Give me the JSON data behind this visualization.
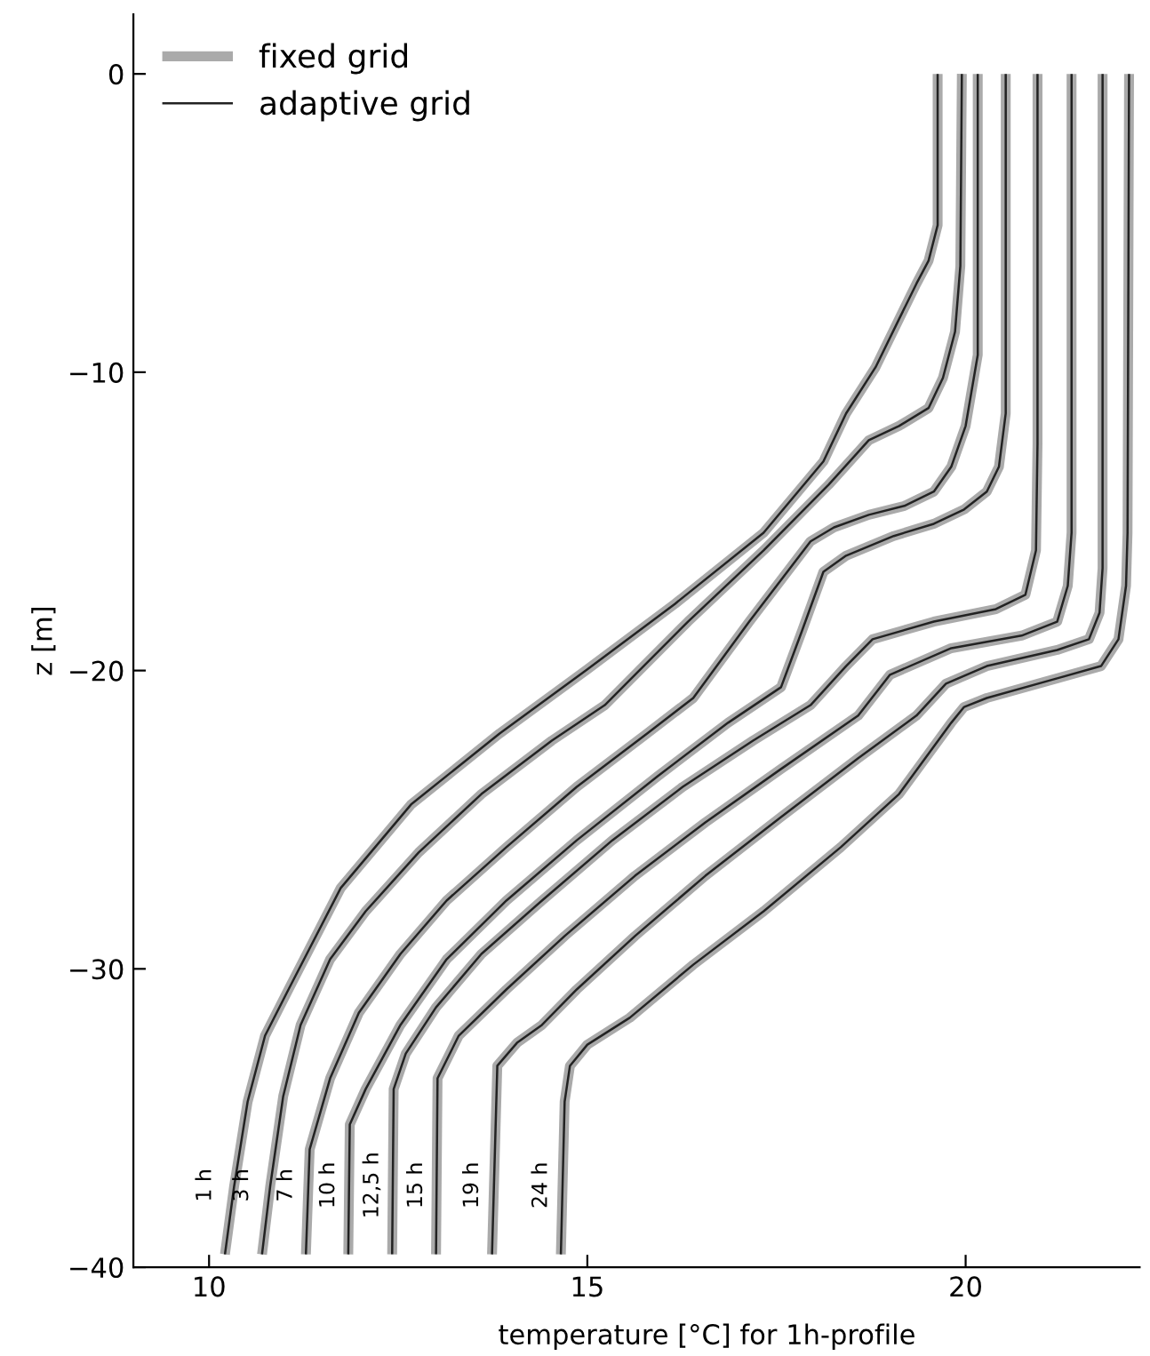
{
  "chart_data": {
    "type": "line",
    "xlabel": "temperature [°C] for 1h-profile",
    "ylabel": "z [m]",
    "xlim": [
      9,
      22.3
    ],
    "xticks": [
      10,
      15,
      20
    ],
    "ylim": [
      -40,
      2
    ],
    "yticks": [
      {
        "value": -40,
        "label": "−40"
      },
      {
        "value": -30,
        "label": "−30"
      },
      {
        "value": -20,
        "label": "−20"
      },
      {
        "value": -10,
        "label": "−10"
      },
      0
    ],
    "grid": false,
    "legend": "top left",
    "series": [
      {
        "name": "fixed grid",
        "color": "#aaaaaa",
        "x": [
          19.63,
          19.63,
          19.51,
          19.35,
          19.12,
          18.81,
          18.42,
          18.12,
          17.33,
          16.16,
          15.0,
          13.84,
          12.67,
          11.74,
          11.05,
          10.74,
          10.51,
          10.33,
          10.21
        ],
        "values": [
          0,
          -5.07,
          -6.26,
          -7.03,
          -8.22,
          -9.83,
          -11.38,
          -12.99,
          -15.38,
          -17.76,
          -19.96,
          -22.11,
          -24.49,
          -27.29,
          -30.69,
          -32.24,
          -34.45,
          -37.31,
          -39.57
        ]
      },
      {
        "color": "#aaaaaa",
        "x": [
          19.95,
          19.93,
          19.86,
          19.7,
          19.51,
          19.12,
          18.72,
          18.19,
          17.33,
          16.33,
          15.23,
          14.53,
          13.6,
          12.77,
          12.07,
          11.6,
          11.21,
          10.98,
          10.81,
          10.7
        ],
        "values": [
          0,
          -6.44,
          -8.64,
          -10.19,
          -11.2,
          -11.8,
          -12.28,
          -13.77,
          -15.97,
          -18.36,
          -21.16,
          -22.35,
          -24.14,
          -26.1,
          -28.07,
          -29.68,
          -31.88,
          -34.27,
          -37.25,
          -39.57
        ]
      },
      {
        "color": "#aaaaaa",
        "x": [
          20.16,
          20.16,
          20.0,
          19.81,
          19.58,
          19.19,
          18.72,
          18.26,
          17.95,
          17.14,
          16.4,
          15.79,
          14.86,
          13.93,
          13.14,
          12.53,
          11.98,
          11.6,
          11.33,
          11.28
        ],
        "values": [
          0,
          -9.42,
          -11.8,
          -13.17,
          -14.0,
          -14.48,
          -14.78,
          -15.2,
          -15.67,
          -18.36,
          -20.92,
          -22.11,
          -23.9,
          -25.92,
          -27.71,
          -29.5,
          -31.47,
          -33.67,
          -36.05,
          -39.57
        ]
      },
      {
        "color": "#aaaaaa",
        "x": [
          20.53,
          20.53,
          20.44,
          20.28,
          19.98,
          19.58,
          19.05,
          18.42,
          18.12,
          17.84,
          17.56,
          16.86,
          15.93,
          14.86,
          13.93,
          13.14,
          12.53,
          12.07,
          11.86,
          11.84
        ],
        "values": [
          0,
          -11.38,
          -13.17,
          -14.0,
          -14.6,
          -15.08,
          -15.49,
          -16.15,
          -16.69,
          -18.65,
          -20.56,
          -21.75,
          -23.54,
          -25.69,
          -27.71,
          -29.68,
          -31.88,
          -34.03,
          -35.22,
          -39.57
        ]
      },
      {
        "color": "#aaaaaa",
        "x": [
          20.95,
          20.95,
          20.93,
          20.79,
          20.4,
          19.58,
          18.77,
          18.42,
          17.95,
          17.19,
          16.26,
          15.33,
          14.4,
          13.6,
          13.0,
          12.6,
          12.44,
          12.42
        ],
        "values": [
          0,
          -12.4,
          -15.97,
          -17.46,
          -17.94,
          -18.36,
          -18.95,
          -19.85,
          -21.16,
          -22.35,
          -23.9,
          -25.69,
          -27.71,
          -29.5,
          -31.29,
          -32.84,
          -34.03,
          -39.57
        ]
      },
      {
        "color": "#aaaaaa",
        "x": [
          21.4,
          21.4,
          21.35,
          21.21,
          20.74,
          19.81,
          19.0,
          18.58,
          17.56,
          16.56,
          15.63,
          14.7,
          13.93,
          13.3,
          13.02,
          13.0
        ],
        "values": [
          0,
          -15.38,
          -17.16,
          -18.36,
          -18.83,
          -19.25,
          -20.14,
          -21.51,
          -23.3,
          -25.09,
          -26.88,
          -28.9,
          -30.69,
          -32.24,
          -33.67,
          -39.57
        ]
      },
      {
        "color": "#aaaaaa",
        "x": [
          21.81,
          21.81,
          21.77,
          21.63,
          21.21,
          20.28,
          19.74,
          19.35,
          18.58,
          17.56,
          16.56,
          15.63,
          14.86,
          14.4,
          14.07,
          13.81,
          13.74
        ],
        "values": [
          0,
          -16.57,
          -18.06,
          -18.95,
          -19.31,
          -19.85,
          -20.44,
          -21.51,
          -22.94,
          -24.91,
          -26.88,
          -28.9,
          -30.69,
          -31.88,
          -32.48,
          -33.25,
          -39.57
        ]
      },
      {
        "color": "#aaaaaa",
        "x": [
          22.16,
          22.14,
          22.12,
          22.02,
          21.79,
          21.21,
          20.28,
          19.98,
          19.81,
          19.12,
          18.35,
          17.33,
          16.4,
          15.56,
          15.0,
          14.77,
          14.7,
          14.65
        ],
        "values": [
          0,
          -15.38,
          -17.16,
          -18.95,
          -19.85,
          -20.26,
          -20.92,
          -21.22,
          -21.75,
          -24.14,
          -25.92,
          -28.07,
          -29.86,
          -31.64,
          -32.54,
          -33.25,
          -34.45,
          -39.57
        ]
      },
      {
        "name": "adaptive grid",
        "color": "#222222",
        "x": [
          19.63,
          19.63,
          19.51,
          19.35,
          19.12,
          18.81,
          18.42,
          18.12,
          17.33,
          16.16,
          15.0,
          13.84,
          12.67,
          11.74,
          11.05,
          10.74,
          10.51,
          10.33,
          10.21
        ],
        "values": [
          0,
          -5.07,
          -6.26,
          -7.03,
          -8.22,
          -9.83,
          -11.38,
          -12.99,
          -15.38,
          -17.76,
          -19.96,
          -22.11,
          -24.49,
          -27.29,
          -30.69,
          -32.24,
          -34.45,
          -37.31,
          -39.57
        ]
      },
      {
        "color": "#222222",
        "x": [
          19.95,
          19.93,
          19.86,
          19.7,
          19.51,
          19.12,
          18.72,
          18.19,
          17.33,
          16.33,
          15.23,
          14.53,
          13.6,
          12.77,
          12.07,
          11.6,
          11.21,
          10.98,
          10.81,
          10.7
        ],
        "values": [
          0,
          -6.44,
          -8.64,
          -10.19,
          -11.2,
          -11.8,
          -12.28,
          -13.77,
          -15.97,
          -18.36,
          -21.16,
          -22.35,
          -24.14,
          -26.1,
          -28.07,
          -29.68,
          -31.88,
          -34.27,
          -37.25,
          -39.57
        ]
      },
      {
        "color": "#222222",
        "x": [
          20.16,
          20.16,
          20.0,
          19.81,
          19.58,
          19.19,
          18.72,
          18.26,
          17.95,
          17.14,
          16.4,
          15.79,
          14.86,
          13.93,
          13.14,
          12.53,
          11.98,
          11.6,
          11.33,
          11.28
        ],
        "values": [
          0,
          -9.42,
          -11.8,
          -13.17,
          -14.0,
          -14.48,
          -14.78,
          -15.2,
          -15.67,
          -18.36,
          -20.92,
          -22.11,
          -23.9,
          -25.92,
          -27.71,
          -29.5,
          -31.47,
          -33.67,
          -36.05,
          -39.57
        ]
      },
      {
        "color": "#222222",
        "x": [
          20.53,
          20.53,
          20.44,
          20.28,
          19.98,
          19.58,
          19.05,
          18.42,
          18.12,
          17.84,
          17.56,
          16.86,
          15.93,
          14.86,
          13.93,
          13.14,
          12.53,
          12.07,
          11.86,
          11.84
        ],
        "values": [
          0,
          -11.38,
          -13.17,
          -14.0,
          -14.6,
          -15.08,
          -15.49,
          -16.15,
          -16.69,
          -18.65,
          -20.56,
          -21.75,
          -23.54,
          -25.69,
          -27.71,
          -29.68,
          -31.88,
          -34.03,
          -35.22,
          -39.57
        ]
      },
      {
        "color": "#222222",
        "x": [
          20.95,
          20.95,
          20.93,
          20.79,
          20.4,
          19.58,
          18.77,
          18.42,
          17.95,
          17.19,
          16.26,
          15.33,
          14.4,
          13.6,
          13.0,
          12.6,
          12.44,
          12.42
        ],
        "values": [
          0,
          -12.4,
          -15.97,
          -17.46,
          -17.94,
          -18.36,
          -18.95,
          -19.85,
          -21.16,
          -22.35,
          -23.9,
          -25.69,
          -27.71,
          -29.5,
          -31.29,
          -32.84,
          -34.03,
          -39.57
        ]
      },
      {
        "color": "#222222",
        "x": [
          21.4,
          21.4,
          21.35,
          21.21,
          20.74,
          19.81,
          19.0,
          18.58,
          17.56,
          16.56,
          15.63,
          14.7,
          13.93,
          13.3,
          13.02,
          13.0
        ],
        "values": [
          0,
          -15.38,
          -17.16,
          -18.36,
          -18.83,
          -19.25,
          -20.14,
          -21.51,
          -23.3,
          -25.09,
          -26.88,
          -28.9,
          -30.69,
          -32.24,
          -33.67,
          -39.57
        ]
      },
      {
        "color": "#222222",
        "x": [
          21.81,
          21.81,
          21.77,
          21.63,
          21.21,
          20.28,
          19.74,
          19.35,
          18.58,
          17.56,
          16.56,
          15.63,
          14.86,
          14.4,
          14.07,
          13.81,
          13.74
        ],
        "values": [
          0,
          -16.57,
          -18.06,
          -18.95,
          -19.31,
          -19.85,
          -20.44,
          -21.51,
          -22.94,
          -24.91,
          -26.88,
          -28.9,
          -30.69,
          -31.88,
          -32.48,
          -33.25,
          -39.57
        ]
      },
      {
        "color": "#222222",
        "x": [
          22.16,
          22.14,
          22.12,
          22.02,
          21.79,
          21.21,
          20.28,
          19.98,
          19.81,
          19.12,
          18.35,
          17.33,
          16.4,
          15.56,
          15.0,
          14.77,
          14.7,
          14.65
        ],
        "values": [
          0,
          -15.38,
          -17.16,
          -18.95,
          -19.85,
          -20.26,
          -20.92,
          -21.22,
          -21.75,
          -24.14,
          -25.92,
          -28.07,
          -29.86,
          -31.64,
          -32.54,
          -33.25,
          -34.45,
          -39.57
        ]
      }
    ],
    "annotations": [
      "1 h",
      "3 h",
      "7 h",
      "10 h",
      "12,5 h",
      "15 h",
      "19 h",
      "24 h"
    ]
  }
}
